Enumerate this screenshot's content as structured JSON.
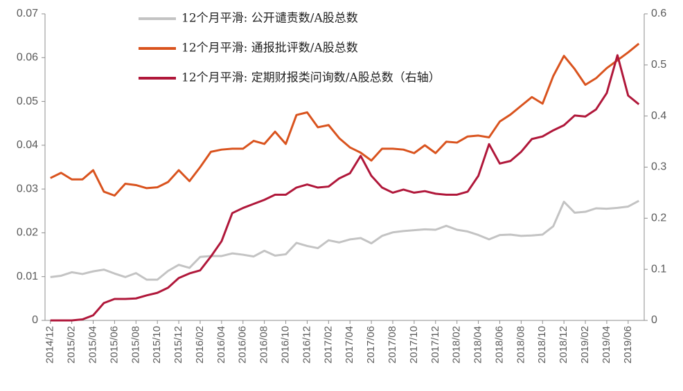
{
  "chart_data": {
    "type": "line",
    "categories": [
      "2014/12",
      null,
      "2015/02",
      null,
      "2015/04",
      null,
      "2015/06",
      null,
      "2015/08",
      null,
      "2015/10",
      null,
      "2015/12",
      null,
      "2016/02",
      null,
      "2016/04",
      null,
      "2016/06",
      null,
      "2016/08",
      null,
      "2016/10",
      null,
      "2016/12",
      null,
      "2017/02",
      null,
      "2017/04",
      null,
      "2017/06",
      null,
      "2017/08",
      null,
      "2017/10",
      null,
      "2017/12",
      null,
      "2018/02",
      null,
      "2018/04",
      null,
      "2018/06",
      null,
      "2018/08",
      null,
      "2018/10",
      null,
      "2018/12",
      null,
      "2019/02",
      null,
      "2019/04",
      null,
      "2019/06",
      null
    ],
    "series": [
      {
        "name": "12个月平滑: 公开谴责数/A股总数",
        "color": "#c3c3c3",
        "values": [
          0.0099,
          0.0102,
          0.011,
          0.0106,
          0.0112,
          0.0116,
          0.0107,
          0.0099,
          0.0108,
          0.0093,
          0.0093,
          0.0113,
          0.0127,
          0.012,
          0.0145,
          0.0147,
          0.0147,
          0.0153,
          0.015,
          0.0146,
          0.0159,
          0.0148,
          0.0151,
          0.0177,
          0.017,
          0.0165,
          0.0183,
          0.0178,
          0.0185,
          0.0188,
          0.0176,
          0.0193,
          0.0201,
          0.0204,
          0.0206,
          0.0208,
          0.0207,
          0.0216,
          0.0207,
          0.0203,
          0.0195,
          0.0185,
          0.0195,
          0.0196,
          0.0193,
          0.0194,
          0.0196,
          0.0215,
          0.0271,
          0.0246,
          0.0248,
          0.0256,
          0.0255,
          0.0257,
          0.026,
          0.0273
        ]
      },
      {
        "name": "12个月平滑: 通报批评数/A股总数",
        "color": "#d9531e",
        "values": [
          0.0325,
          0.0337,
          0.0322,
          0.0322,
          0.0343,
          0.0294,
          0.0285,
          0.0312,
          0.0309,
          0.0302,
          0.0304,
          0.0316,
          0.0343,
          0.0318,
          0.035,
          0.0385,
          0.039,
          0.0392,
          0.0392,
          0.041,
          0.0403,
          0.0431,
          0.0403,
          0.0469,
          0.0475,
          0.0441,
          0.0446,
          0.0416,
          0.0395,
          0.0383,
          0.0365,
          0.0392,
          0.0392,
          0.039,
          0.0382,
          0.04,
          0.0382,
          0.0408,
          0.0406,
          0.042,
          0.0422,
          0.0418,
          0.0454,
          0.047,
          0.049,
          0.051,
          0.0495,
          0.0558,
          0.0604,
          0.0574,
          0.0538,
          0.0553,
          0.0576,
          0.0594,
          0.0612,
          0.0632
        ]
      },
      {
        "name": "12个月平滑: 定期财报类问询数/A股总数（右轴）",
        "color": "#b0173a",
        "axis": "y2",
        "values": [
          0,
          0,
          0,
          0.002,
          0.01,
          0.034,
          0.042,
          0.042,
          0.043,
          0.049,
          0.054,
          0.064,
          0.083,
          0.092,
          0.098,
          0.125,
          0.155,
          0.21,
          0.22,
          0.228,
          0.236,
          0.246,
          0.246,
          0.26,
          0.266,
          0.26,
          0.262,
          0.278,
          0.288,
          0.322,
          0.283,
          0.26,
          0.25,
          0.256,
          0.25,
          0.253,
          0.248,
          0.246,
          0.246,
          0.252,
          0.283,
          0.345,
          0.307,
          0.312,
          0.33,
          0.355,
          0.36,
          0.372,
          0.382,
          0.401,
          0.399,
          0.413,
          0.445,
          0.519,
          0.44,
          0.423
        ]
      }
    ],
    "ylim": [
      0,
      0.07
    ],
    "yticks": [
      0,
      0.01,
      0.02,
      0.03,
      0.04,
      0.05,
      0.06,
      0.07
    ],
    "y2lim": [
      0,
      0.6
    ],
    "y2ticks": [
      0,
      0.1,
      0.2,
      0.3,
      0.4,
      0.5,
      0.6
    ],
    "grid": false
  }
}
